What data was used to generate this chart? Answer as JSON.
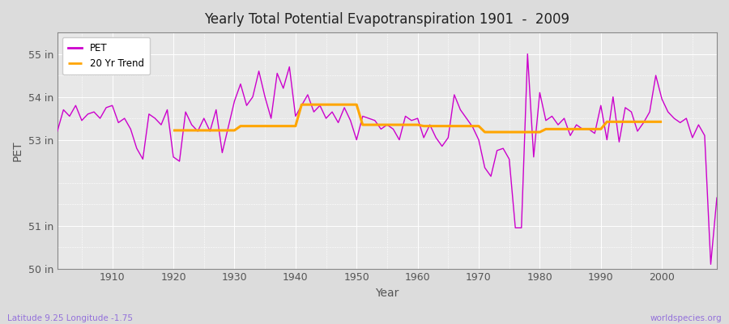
{
  "title": "Yearly Total Potential Evapotranspiration 1901  -  2009",
  "xlabel": "Year",
  "ylabel": "PET",
  "subtitle_left": "Latitude 9.25 Longitude -1.75",
  "subtitle_right": "worldspecies.org",
  "ylim": [
    50,
    55.5
  ],
  "pet_color": "#CC00CC",
  "trend_color": "#FFA500",
  "years": [
    1901,
    1902,
    1903,
    1904,
    1905,
    1906,
    1907,
    1908,
    1909,
    1910,
    1911,
    1912,
    1913,
    1914,
    1915,
    1916,
    1917,
    1918,
    1919,
    1920,
    1921,
    1922,
    1923,
    1924,
    1925,
    1926,
    1927,
    1928,
    1929,
    1930,
    1931,
    1932,
    1933,
    1934,
    1935,
    1936,
    1937,
    1938,
    1939,
    1940,
    1941,
    1942,
    1943,
    1944,
    1945,
    1946,
    1947,
    1948,
    1949,
    1950,
    1951,
    1952,
    1953,
    1954,
    1955,
    1956,
    1957,
    1958,
    1959,
    1960,
    1961,
    1962,
    1963,
    1964,
    1965,
    1966,
    1967,
    1968,
    1969,
    1970,
    1971,
    1972,
    1973,
    1974,
    1975,
    1976,
    1977,
    1978,
    1979,
    1980,
    1981,
    1982,
    1983,
    1984,
    1985,
    1986,
    1987,
    1988,
    1989,
    1990,
    1991,
    1992,
    1993,
    1994,
    1995,
    1996,
    1997,
    1998,
    1999,
    2000,
    2001,
    2002,
    2003,
    2004,
    2005,
    2006,
    2007,
    2008,
    2009
  ],
  "pet": [
    53.2,
    53.7,
    53.55,
    53.8,
    53.45,
    53.6,
    53.65,
    53.5,
    53.75,
    53.8,
    53.4,
    53.5,
    53.25,
    52.8,
    52.55,
    53.6,
    53.5,
    53.35,
    53.7,
    52.6,
    52.5,
    53.65,
    53.35,
    53.2,
    53.5,
    53.2,
    53.7,
    52.7,
    53.3,
    53.9,
    54.3,
    53.8,
    54.0,
    54.6,
    54.0,
    53.5,
    54.55,
    54.2,
    54.7,
    53.55,
    53.8,
    54.05,
    53.65,
    53.8,
    53.5,
    53.65,
    53.4,
    53.75,
    53.45,
    53.0,
    53.55,
    53.5,
    53.45,
    53.25,
    53.35,
    53.25,
    53.0,
    53.55,
    53.45,
    53.5,
    53.05,
    53.35,
    53.05,
    52.85,
    53.05,
    54.05,
    53.7,
    53.5,
    53.3,
    53.0,
    52.35,
    52.15,
    52.75,
    52.8,
    52.55,
    50.95,
    50.95,
    55.0,
    52.6,
    54.1,
    53.45,
    53.55,
    53.35,
    53.5,
    53.1,
    53.35,
    53.25,
    53.25,
    53.15,
    53.8,
    53.0,
    54.0,
    52.95,
    53.75,
    53.65,
    53.2,
    53.4,
    53.65,
    54.5,
    53.95,
    53.65,
    53.5,
    53.4,
    53.5,
    53.05,
    53.35,
    53.1,
    50.1,
    51.65
  ],
  "trend": [
    null,
    null,
    null,
    null,
    null,
    null,
    null,
    null,
    null,
    null,
    null,
    null,
    null,
    null,
    null,
    null,
    null,
    null,
    null,
    53.22,
    53.22,
    53.22,
    53.22,
    53.22,
    53.22,
    53.22,
    53.22,
    53.22,
    53.22,
    53.22,
    53.32,
    53.32,
    53.32,
    53.32,
    53.32,
    53.32,
    53.32,
    53.32,
    53.32,
    53.32,
    53.82,
    53.82,
    53.82,
    53.82,
    53.82,
    53.82,
    53.82,
    53.82,
    53.82,
    53.82,
    53.35,
    53.35,
    53.35,
    53.35,
    53.35,
    53.35,
    53.35,
    53.35,
    53.35,
    53.35,
    53.32,
    53.32,
    53.32,
    53.32,
    53.32,
    53.32,
    53.32,
    53.32,
    53.32,
    53.32,
    53.18,
    53.18,
    53.18,
    53.18,
    53.18,
    53.18,
    53.18,
    53.18,
    53.18,
    53.18,
    53.25,
    53.25,
    53.25,
    53.25,
    53.25,
    53.25,
    53.25,
    53.25,
    53.25,
    53.25,
    53.42,
    53.42,
    53.42,
    53.42,
    53.42,
    53.42,
    53.42,
    53.42,
    53.42,
    53.42,
    null,
    null,
    null,
    null,
    null,
    null,
    null,
    null,
    null
  ]
}
